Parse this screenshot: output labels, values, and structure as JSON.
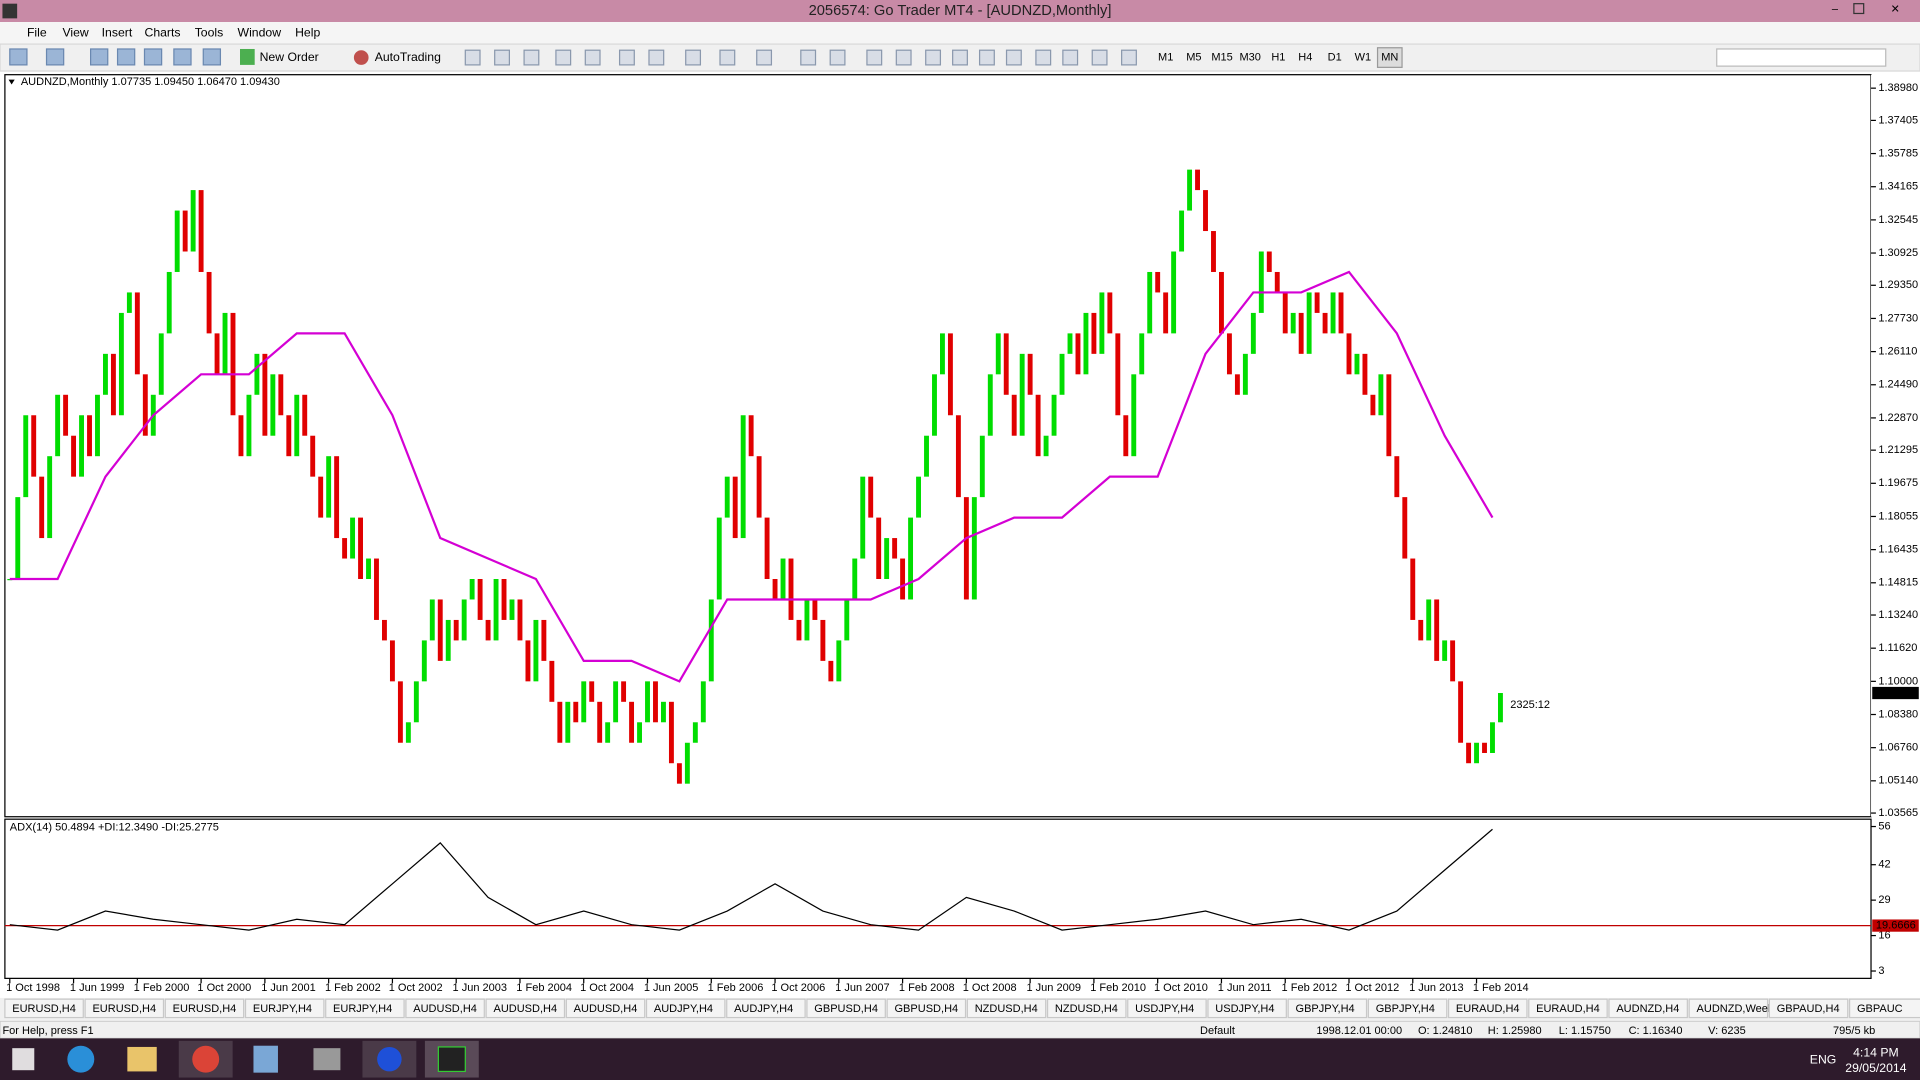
{
  "window": {
    "title": "2056574: Go Trader MT4 - [AUDNZD,Monthly]"
  },
  "menu": [
    "File",
    "View",
    "Insert",
    "Charts",
    "Tools",
    "Window",
    "Help"
  ],
  "toolbar": {
    "new_order": "New Order",
    "autotrading": "AutoTrading",
    "timeframes": [
      "M1",
      "M5",
      "M15",
      "M30",
      "H1",
      "H4",
      "D1",
      "W1",
      "MN"
    ]
  },
  "chart_data": [
    {
      "type": "candlestick",
      "title": "AUDNZD,Monthly 1.07735 1.09450 1.06470 1.09430",
      "up_color": "#00dd00",
      "down_color": "#e00000",
      "annotation": "2325:12",
      "annotation_color": "#e03030",
      "x": [
        "1998-10",
        "1998-11",
        "1998-12",
        "1999-01",
        "1999-02",
        "1999-03",
        "1999-04",
        "1999-05",
        "1999-06",
        "1999-07",
        "1999-08",
        "1999-09",
        "1999-10",
        "1999-11",
        "1999-12",
        "2000-01",
        "2000-02",
        "2000-03",
        "2000-04",
        "2000-05",
        "2000-06",
        "2000-07",
        "2000-08",
        "2000-09",
        "2000-10",
        "2000-11",
        "2000-12",
        "2001-01",
        "2001-02",
        "2001-03",
        "2001-04",
        "2001-05",
        "2001-06",
        "2001-07",
        "2001-08",
        "2001-09",
        "2001-10",
        "2001-11",
        "2001-12",
        "2002-01",
        "2002-02",
        "2002-03",
        "2002-04",
        "2002-05",
        "2002-06",
        "2002-07",
        "2002-08",
        "2002-09",
        "2002-10",
        "2002-11",
        "2002-12",
        "2003-01",
        "2003-02",
        "2003-03",
        "2003-04",
        "2003-05",
        "2003-06",
        "2003-07",
        "2003-08",
        "2003-09",
        "2003-10",
        "2003-11",
        "2003-12",
        "2004-01",
        "2004-02",
        "2004-03",
        "2004-04",
        "2004-05",
        "2004-06",
        "2004-07",
        "2004-08",
        "2004-09",
        "2004-10",
        "2004-11",
        "2004-12",
        "2005-01",
        "2005-02",
        "2005-03",
        "2005-04",
        "2005-05",
        "2005-06",
        "2005-07",
        "2005-08",
        "2005-09",
        "2005-10",
        "2005-11",
        "2005-12",
        "2006-01",
        "2006-02",
        "2006-03",
        "2006-04",
        "2006-05",
        "2006-06",
        "2006-07",
        "2006-08",
        "2006-09",
        "2006-10",
        "2006-11",
        "2006-12",
        "2007-01",
        "2007-02",
        "2007-03",
        "2007-04",
        "2007-05",
        "2007-06",
        "2007-07",
        "2007-08",
        "2007-09",
        "2007-10",
        "2007-11",
        "2007-12",
        "2008-01",
        "2008-02",
        "2008-03",
        "2008-04",
        "2008-05",
        "2008-06",
        "2008-07",
        "2008-08",
        "2008-09",
        "2008-10",
        "2008-11",
        "2008-12",
        "2009-01",
        "2009-02",
        "2009-03",
        "2009-04",
        "2009-05",
        "2009-06",
        "2009-07",
        "2009-08",
        "2009-09",
        "2009-10",
        "2009-11",
        "2009-12",
        "2010-01",
        "2010-02",
        "2010-03",
        "2010-04",
        "2010-05",
        "2010-06",
        "2010-07",
        "2010-08",
        "2010-09",
        "2010-10",
        "2010-11",
        "2010-12",
        "2011-01",
        "2011-02",
        "2011-03",
        "2011-04",
        "2011-05",
        "2011-06",
        "2011-07",
        "2011-08",
        "2011-09",
        "2011-10",
        "2011-11",
        "2011-12",
        "2012-01",
        "2012-02",
        "2012-03",
        "2012-04",
        "2012-05",
        "2012-06",
        "2012-07",
        "2012-08",
        "2012-09",
        "2012-10",
        "2012-11",
        "2012-12",
        "2013-01",
        "2013-02",
        "2013-03",
        "2013-04",
        "2013-05",
        "2013-06",
        "2013-07",
        "2013-08",
        "2013-09",
        "2013-10",
        "2013-11",
        "2013-12",
        "2014-01",
        "2014-02",
        "2014-03",
        "2014-04",
        "2014-05"
      ],
      "values": [
        1.15,
        1.19,
        1.23,
        1.2,
        1.17,
        1.21,
        1.24,
        1.22,
        1.2,
        1.23,
        1.21,
        1.24,
        1.26,
        1.23,
        1.28,
        1.29,
        1.25,
        1.22,
        1.24,
        1.27,
        1.3,
        1.33,
        1.31,
        1.34,
        1.3,
        1.27,
        1.25,
        1.28,
        1.23,
        1.21,
        1.24,
        1.26,
        1.22,
        1.25,
        1.23,
        1.21,
        1.24,
        1.22,
        1.2,
        1.18,
        1.21,
        1.17,
        1.16,
        1.18,
        1.15,
        1.16,
        1.13,
        1.12,
        1.1,
        1.07,
        1.08,
        1.1,
        1.12,
        1.14,
        1.11,
        1.13,
        1.12,
        1.14,
        1.15,
        1.13,
        1.12,
        1.15,
        1.13,
        1.14,
        1.12,
        1.1,
        1.13,
        1.11,
        1.09,
        1.07,
        1.09,
        1.08,
        1.1,
        1.09,
        1.07,
        1.08,
        1.1,
        1.09,
        1.07,
        1.08,
        1.1,
        1.08,
        1.09,
        1.06,
        1.05,
        1.07,
        1.08,
        1.1,
        1.14,
        1.18,
        1.2,
        1.17,
        1.23,
        1.21,
        1.18,
        1.15,
        1.14,
        1.16,
        1.13,
        1.12,
        1.14,
        1.13,
        1.11,
        1.1,
        1.12,
        1.14,
        1.16,
        1.2,
        1.18,
        1.15,
        1.17,
        1.16,
        1.14,
        1.18,
        1.2,
        1.22,
        1.25,
        1.27,
        1.23,
        1.19,
        1.14,
        1.19,
        1.22,
        1.25,
        1.27,
        1.24,
        1.22,
        1.26,
        1.24,
        1.21,
        1.22,
        1.24,
        1.26,
        1.27,
        1.25,
        1.28,
        1.26,
        1.29,
        1.27,
        1.23,
        1.21,
        1.25,
        1.27,
        1.3,
        1.29,
        1.27,
        1.31,
        1.33,
        1.35,
        1.34,
        1.32,
        1.3,
        1.27,
        1.25,
        1.24,
        1.26,
        1.28,
        1.31,
        1.3,
        1.29,
        1.27,
        1.28,
        1.26,
        1.29,
        1.28,
        1.27,
        1.29,
        1.27,
        1.25,
        1.26,
        1.24,
        1.23,
        1.25,
        1.21,
        1.19,
        1.16,
        1.13,
        1.12,
        1.14,
        1.11,
        1.12,
        1.1,
        1.07,
        1.06,
        1.07,
        1.065,
        1.08,
        1.0943
      ],
      "lines": [
        {
          "color": "#d400d4",
          "x": [
            "1998-10",
            "1999-04",
            "1999-10",
            "2000-04",
            "2000-10",
            "2001-04",
            "2001-10",
            "2002-04",
            "2002-10",
            "2003-04",
            "2003-10",
            "2004-04",
            "2004-10",
            "2005-04",
            "2005-10",
            "2006-04",
            "2006-10",
            "2007-04",
            "2007-10",
            "2008-04",
            "2008-10",
            "2009-04",
            "2009-10",
            "2010-04",
            "2010-10",
            "2011-04",
            "2011-10",
            "2012-04",
            "2012-10",
            "2013-04",
            "2013-10",
            "2014-04"
          ],
          "values": [
            1.15,
            1.15,
            1.2,
            1.23,
            1.25,
            1.25,
            1.27,
            1.27,
            1.23,
            1.17,
            1.16,
            1.15,
            1.11,
            1.11,
            1.1,
            1.14,
            1.14,
            1.14,
            1.14,
            1.15,
            1.17,
            1.18,
            1.18,
            1.2,
            1.2,
            1.26,
            1.29,
            1.29,
            1.3,
            1.27,
            1.22,
            1.18
          ]
        }
      ],
      "ylim": [
        1.03565,
        1.3898
      ],
      "yticks": [
        {
          "value": 1.3898,
          "label": "1.38980"
        },
        1.37405,
        1.35785,
        1.34165,
        1.32545,
        1.30925,
        {
          "value": 1.2935,
          "label": "1.29350"
        },
        {
          "value": 1.2773,
          "label": "1.27730"
        },
        {
          "value": 1.2611,
          "label": "1.26110"
        },
        {
          "value": 1.2449,
          "label": "1.24490"
        },
        {
          "value": 1.2287,
          "label": "1.22870"
        },
        1.21295,
        1.19675,
        1.18055,
        1.16435,
        1.14815,
        {
          "value": 1.1324,
          "label": "1.13240"
        },
        {
          "value": 1.1162,
          "label": "1.11620"
        },
        {
          "value": 1.1,
          "label": "1.10000"
        },
        {
          "value": 1.0838,
          "label": "1.08380"
        },
        {
          "value": 1.0676,
          "label": "1.06760"
        },
        {
          "value": 1.0514,
          "label": "1.05140"
        },
        1.03565
      ],
      "last_price": {
        "value": 1.0943,
        "label": "1.09430"
      }
    },
    {
      "type": "line",
      "title": "ADX(14) 50.4894 +DI:12.3490 -DI:25.2775",
      "color": "#000000",
      "x": [
        "1998-10",
        "1999-04",
        "1999-10",
        "2000-04",
        "2000-10",
        "2001-04",
        "2001-10",
        "2002-04",
        "2002-10",
        "2003-04",
        "2003-10",
        "2004-04",
        "2004-10",
        "2005-04",
        "2005-10",
        "2006-04",
        "2006-10",
        "2007-04",
        "2007-10",
        "2008-04",
        "2008-10",
        "2009-04",
        "2009-10",
        "2010-04",
        "2010-10",
        "2011-04",
        "2011-10",
        "2012-04",
        "2012-10",
        "2013-04",
        "2013-10",
        "2014-04"
      ],
      "values": [
        20,
        18,
        25,
        22,
        20,
        18,
        22,
        20,
        35,
        50,
        30,
        20,
        25,
        20,
        18,
        25,
        35,
        25,
        20,
        18,
        30,
        25,
        18,
        20,
        22,
        25,
        20,
        22,
        18,
        25,
        40,
        55
      ],
      "ylim": [
        3,
        56
      ],
      "yticks": [
        3,
        16,
        29,
        42,
        56
      ],
      "level": 19.6666,
      "level_color": "#c00000",
      "xticks": [
        {
          "value": "1998-10",
          "label": "1 Oct 1998"
        },
        {
          "value": "1999-06",
          "label": "1 Jun 1999"
        },
        {
          "value": "2000-02",
          "label": "1 Feb 2000"
        },
        {
          "value": "2000-10",
          "label": "1 Oct 2000"
        },
        {
          "value": "2001-06",
          "label": "1 Jun 2001"
        },
        {
          "value": "2002-02",
          "label": "1 Feb 2002"
        },
        {
          "value": "2002-10",
          "label": "1 Oct 2002"
        },
        {
          "value": "2003-06",
          "label": "1 Jun 2003"
        },
        {
          "value": "2004-02",
          "label": "1 Feb 2004"
        },
        {
          "value": "2004-10",
          "label": "1 Oct 2004"
        },
        {
          "value": "2005-06",
          "label": "1 Jun 2005"
        },
        {
          "value": "2006-02",
          "label": "1 Feb 2006"
        },
        {
          "value": "2006-10",
          "label": "1 Oct 2006"
        },
        {
          "value": "2007-06",
          "label": "1 Jun 2007"
        },
        {
          "value": "2008-02",
          "label": "1 Feb 2008"
        },
        {
          "value": "2008-10",
          "label": "1 Oct 2008"
        },
        {
          "value": "2009-06",
          "label": "1 Jun 2009"
        },
        {
          "value": "2010-02",
          "label": "1 Feb 2010"
        },
        {
          "value": "2010-10",
          "label": "1 Oct 2010"
        },
        {
          "value": "2011-06",
          "label": "1 Jun 2011"
        },
        {
          "value": "2012-02",
          "label": "1 Feb 2012"
        },
        {
          "value": "2012-10",
          "label": "1 Oct 2012"
        },
        {
          "value": "2013-06",
          "label": "1 Jun 2013"
        },
        {
          "value": "2014-02",
          "label": "1 Feb 2014"
        }
      ]
    }
  ],
  "tabs": [
    "EURUSD,H4",
    "EURUSD,H4",
    "EURUSD,H4",
    "EURJPY,H4",
    "EURJPY,H4",
    "AUDUSD,H4",
    "AUDUSD,H4",
    "AUDUSD,H4",
    "AUDJPY,H4",
    "AUDJPY,H4",
    "GBPUSD,H4",
    "GBPUSD,H4",
    "NZDUSD,H4",
    "NZDUSD,H4",
    "USDJPY,H4",
    "USDJPY,H4",
    "GBPJPY,H4",
    "GBPJPY,H4",
    "EURAUD,H4",
    "EURAUD,H4",
    "AUDNZD,H4",
    "AUDNZD,Weekly",
    "GBPAUD,H4",
    "GBPAUC"
  ],
  "status": [
    "For Help, press F1",
    "Default",
    "1998.12.01 00:00",
    "O: 1.24810",
    "H: 1.25980",
    "L: 1.15750",
    "C: 1.16340",
    "V: 6235",
    "795/5 kb"
  ],
  "taskbar": {
    "language": "ENG",
    "time": "4:14 PM",
    "date": "29/05/2014"
  }
}
